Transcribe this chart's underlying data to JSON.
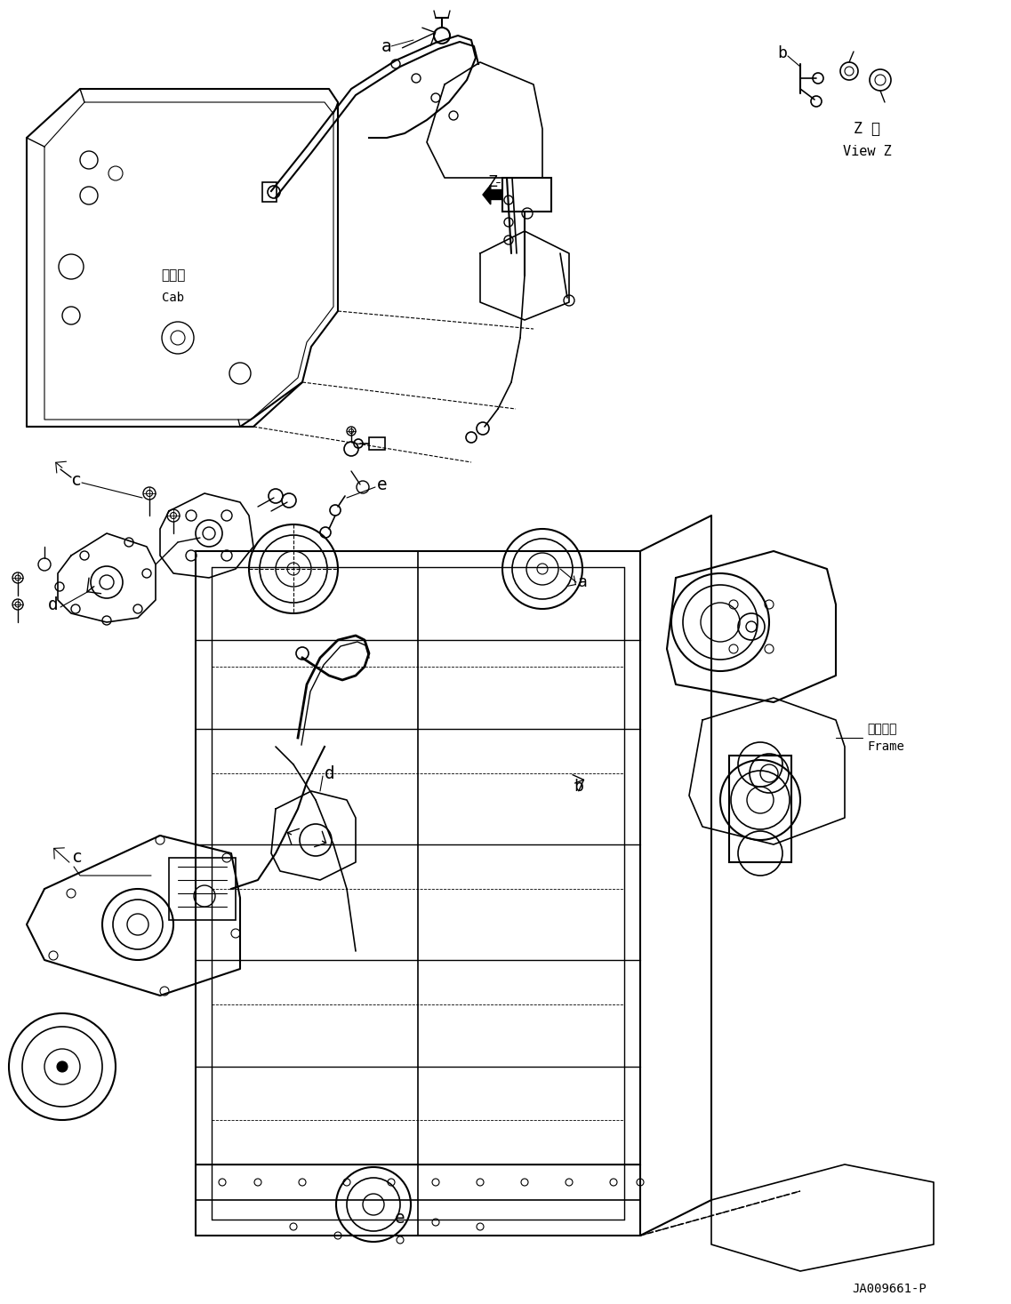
{
  "bg_color": "#ffffff",
  "line_color": "#000000",
  "fig_width": 11.37,
  "fig_height": 14.67,
  "dpi": 100,
  "watermark": "JA009661-P",
  "view_z_text1": "Z 視",
  "view_z_text2": "View Z",
  "cab_text1": "キャブ",
  "cab_text2": "Cab",
  "frame_text1": "フレーム",
  "frame_text2": "Frame"
}
